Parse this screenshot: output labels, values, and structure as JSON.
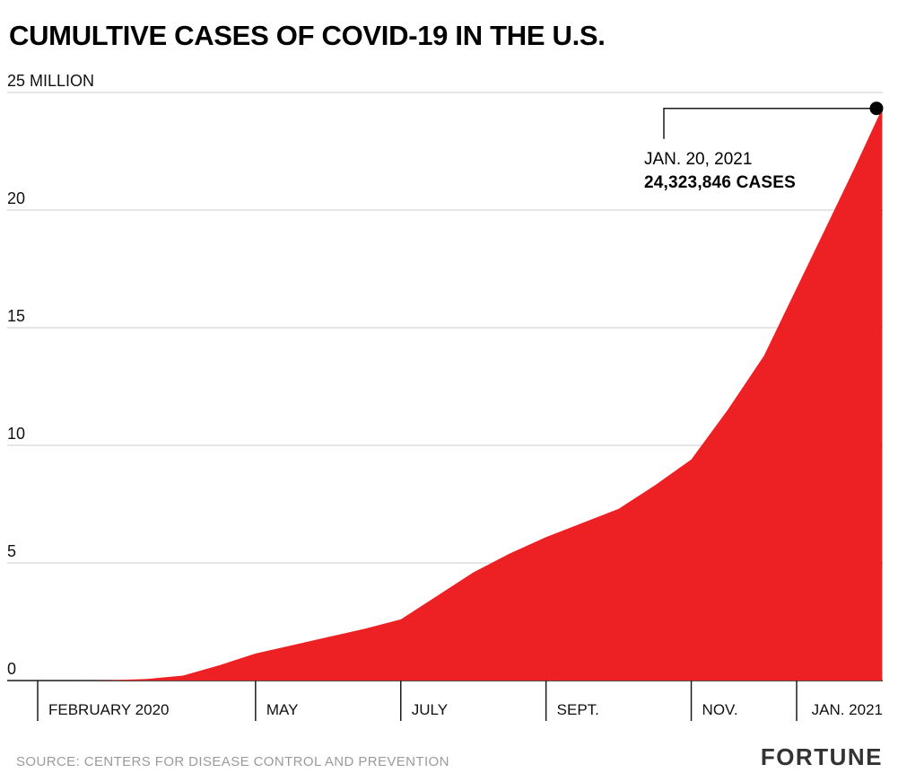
{
  "title": "CUMULTIVE CASES OF COVID-19 IN THE U.S.",
  "annotation": {
    "date": "JAN. 20, 2021",
    "cases": "24,323,846 CASES"
  },
  "footer": {
    "source": "SOURCE: CENTERS FOR DISEASE CONTROL AND PREVENTION",
    "brand": "FORTUNE"
  },
  "colors": {
    "area": "#ED2024",
    "grid": "#cccccc",
    "axis": "#1a1a1a",
    "dot": "#000000",
    "text": "#111111",
    "muted": "#9b9b9b"
  },
  "chart_data": {
    "type": "area",
    "title": "CUMULTIVE CASES OF COVID-19 IN THE U.S.",
    "x_unit": "months since February 2020 (fractional)",
    "y_unit": "cumulative cases, millions",
    "ylim": [
      0,
      25
    ],
    "grid": true,
    "points": [
      [
        0,
        0
      ],
      [
        0.5,
        0
      ],
      [
        1,
        0.01
      ],
      [
        1.5,
        0.07
      ],
      [
        2,
        0.21
      ],
      [
        2.5,
        0.65
      ],
      [
        3,
        1.15
      ],
      [
        3.5,
        1.5
      ],
      [
        4,
        1.85
      ],
      [
        4.5,
        2.2
      ],
      [
        5,
        2.6
      ],
      [
        5.5,
        3.6
      ],
      [
        6,
        4.6
      ],
      [
        6.5,
        5.4
      ],
      [
        7,
        6.1
      ],
      [
        7.5,
        6.7
      ],
      [
        8,
        7.3
      ],
      [
        8.5,
        8.3
      ],
      [
        9,
        9.4
      ],
      [
        9.5,
        11.5
      ],
      [
        10,
        13.8
      ],
      [
        10.5,
        17.0
      ],
      [
        11,
        20.2
      ],
      [
        11.25,
        21.8
      ],
      [
        11.63,
        24.323846
      ]
    ],
    "endpoint": {
      "x_month": 11.63,
      "value_millions": 24.323846,
      "label_date": "JAN. 20, 2021",
      "label_cases": "24,323,846 CASES"
    },
    "yticks": [
      {
        "value": 25,
        "label": "25 MILLION"
      },
      {
        "value": 20,
        "label": "20"
      },
      {
        "value": 15,
        "label": "15"
      },
      {
        "value": 10,
        "label": "10"
      },
      {
        "value": 5,
        "label": "5"
      },
      {
        "value": 0,
        "label": "0"
      }
    ],
    "xticks": [
      {
        "month": 0,
        "label": "FEBRUARY 2020"
      },
      {
        "month": 3,
        "label": "MAY"
      },
      {
        "month": 5,
        "label": "JULY"
      },
      {
        "month": 7,
        "label": "SEPT."
      },
      {
        "month": 9,
        "label": "NOV."
      },
      {
        "month": 11,
        "label": "JAN. 2021",
        "align": "right"
      }
    ]
  }
}
